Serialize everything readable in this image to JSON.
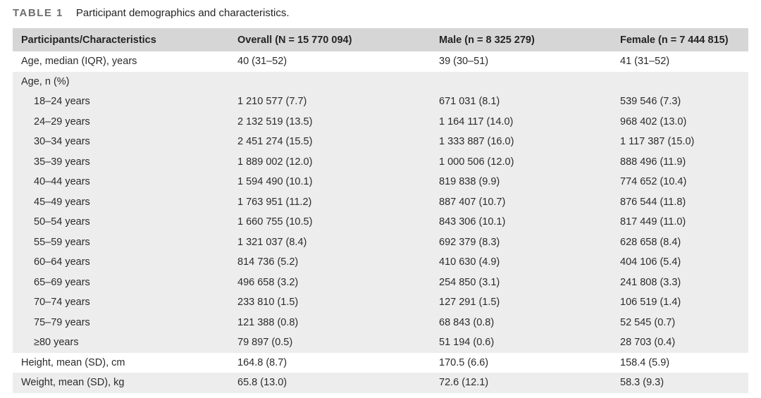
{
  "title": {
    "label": "TABLE 1",
    "caption": "Participant demographics and characteristics."
  },
  "table": {
    "columns": [
      "Participants/Characteristics",
      "Overall (N = 15 770 094)",
      "Male (n = 8 325 279)",
      "Female (n = 7 444 815)"
    ],
    "rows": [
      {
        "label": "Age, median (IQR), years",
        "indent": 0,
        "shaded": false,
        "values": [
          "40 (31–52)",
          "39 (30–51)",
          "41 (31–52)"
        ]
      },
      {
        "label": "Age, n (%)",
        "indent": 0,
        "shaded": true,
        "values": [
          "",
          "",
          ""
        ]
      },
      {
        "label": "18–24 years",
        "indent": 1,
        "shaded": true,
        "values": [
          "1 210 577 (7.7)",
          "671 031 (8.1)",
          "539 546 (7.3)"
        ]
      },
      {
        "label": "24–29 years",
        "indent": 1,
        "shaded": true,
        "values": [
          "2 132 519 (13.5)",
          "1 164 117 (14.0)",
          "968 402 (13.0)"
        ]
      },
      {
        "label": "30–34 years",
        "indent": 1,
        "shaded": true,
        "values": [
          "2 451 274 (15.5)",
          "1 333 887 (16.0)",
          "1 117 387 (15.0)"
        ]
      },
      {
        "label": "35–39 years",
        "indent": 1,
        "shaded": true,
        "values": [
          "1 889 002 (12.0)",
          "1 000 506 (12.0)",
          "888 496 (11.9)"
        ]
      },
      {
        "label": "40–44 years",
        "indent": 1,
        "shaded": true,
        "values": [
          "1 594 490 (10.1)",
          "819 838 (9.9)",
          "774 652 (10.4)"
        ]
      },
      {
        "label": "45–49 years",
        "indent": 1,
        "shaded": true,
        "values": [
          "1 763 951 (11.2)",
          "887 407 (10.7)",
          "876 544 (11.8)"
        ]
      },
      {
        "label": "50–54 years",
        "indent": 1,
        "shaded": true,
        "values": [
          "1 660 755 (10.5)",
          "843 306 (10.1)",
          "817 449 (11.0)"
        ]
      },
      {
        "label": "55–59 years",
        "indent": 1,
        "shaded": true,
        "values": [
          "1 321 037 (8.4)",
          "692 379 (8.3)",
          "628 658 (8.4)"
        ]
      },
      {
        "label": "60–64 years",
        "indent": 1,
        "shaded": true,
        "values": [
          "814 736 (5.2)",
          "410 630 (4.9)",
          "404 106 (5.4)"
        ]
      },
      {
        "label": "65–69 years",
        "indent": 1,
        "shaded": true,
        "values": [
          "496 658 (3.2)",
          "254 850 (3.1)",
          "241 808 (3.3)"
        ]
      },
      {
        "label": "70–74 years",
        "indent": 1,
        "shaded": true,
        "values": [
          "233 810 (1.5)",
          "127 291 (1.5)",
          "106 519 (1.4)"
        ]
      },
      {
        "label": "75–79 years",
        "indent": 1,
        "shaded": true,
        "values": [
          "121 388 (0.8)",
          "68 843 (0.8)",
          "52 545 (0.7)"
        ]
      },
      {
        "label": "≥80 years",
        "indent": 1,
        "shaded": true,
        "values": [
          "79 897 (0.5)",
          "51 194 (0.6)",
          "28 703 (0.4)"
        ]
      },
      {
        "label": "Height, mean (SD), cm",
        "indent": 0,
        "shaded": false,
        "values": [
          "164.8 (8.7)",
          "170.5 (6.6)",
          "158.4 (5.9)"
        ]
      },
      {
        "label": "Weight, mean (SD), kg",
        "indent": 0,
        "shaded": true,
        "values": [
          "65.8 (13.0)",
          "72.6 (12.1)",
          "58.3 (9.3)"
        ]
      }
    ],
    "colors": {
      "header_bg": "#d6d6d6",
      "shaded_row_bg": "#ededed",
      "label_color": "#6d6d6d",
      "text_color": "#2b2b2b"
    }
  }
}
